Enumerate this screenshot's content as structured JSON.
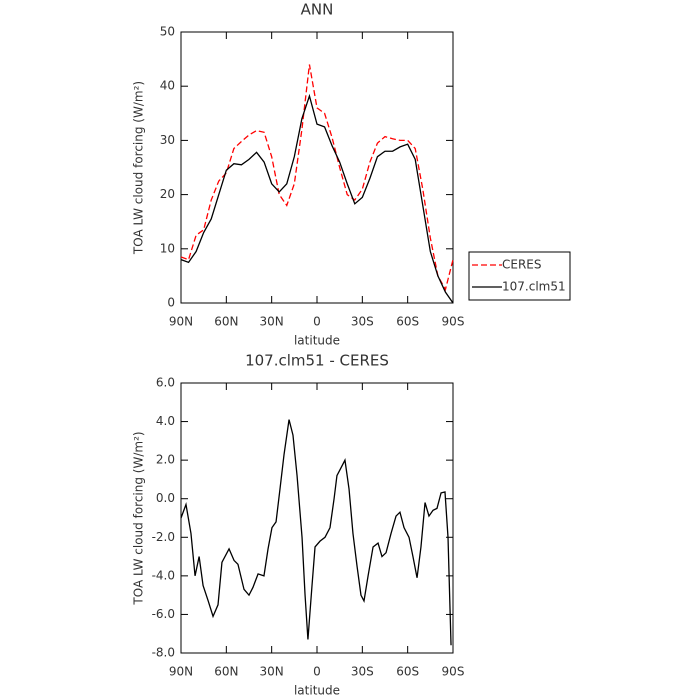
{
  "chart_data": [
    {
      "type": "line",
      "title": "ANN",
      "xlabel": "latitude",
      "ylabel": "TOA LW cloud forcing (W/m²)",
      "x": [
        90,
        85,
        80,
        75,
        70,
        65,
        60,
        55,
        50,
        45,
        40,
        35,
        30,
        25,
        20,
        15,
        10,
        5,
        0,
        -5,
        -10,
        -15,
        -20,
        -25,
        -30,
        -35,
        -40,
        -45,
        -50,
        -55,
        -60,
        -65,
        -70,
        -75,
        -80,
        -85,
        -90
      ],
      "series": [
        {
          "name": "CERES",
          "color": "#ff0000",
          "dashed": true,
          "values": [
            8.5,
            8,
            12.5,
            13.5,
            19,
            22.5,
            24,
            28.5,
            29.8,
            31,
            31.8,
            31.5,
            27,
            20,
            18,
            22,
            32,
            44,
            36,
            35,
            30.5,
            25,
            20,
            19,
            21,
            26,
            29.5,
            30.7,
            30.3,
            30,
            30,
            28.5,
            21,
            12,
            5,
            2.5,
            8
          ]
        },
        {
          "name": "107.clm51",
          "color": "#000000",
          "dashed": false,
          "values": [
            8,
            7.5,
            9.5,
            13,
            15.5,
            20,
            24.5,
            25.7,
            25.5,
            26.5,
            27.8,
            26,
            22,
            20.5,
            22,
            27,
            34,
            38.2,
            33,
            32.5,
            29,
            26,
            22,
            18.3,
            19.5,
            23,
            27,
            28,
            28,
            28.8,
            29.3,
            26.5,
            18,
            9.5,
            5,
            2,
            0
          ]
        }
      ],
      "xlim": [
        90,
        -90
      ],
      "xticks": [
        {
          "value": 90,
          "label": "90N"
        },
        {
          "value": 60,
          "label": "60N"
        },
        {
          "value": 30,
          "label": "30N"
        },
        0,
        {
          "value": -30,
          "label": "30S"
        },
        {
          "value": -60,
          "label": "60S"
        },
        {
          "value": -90,
          "label": "90S"
        }
      ],
      "ylim": [
        0,
        50
      ],
      "yticks": [
        0,
        10,
        20,
        30,
        40,
        50
      ],
      "legend": "right"
    },
    {
      "type": "line",
      "title": "107.clm51 - CERES",
      "xlabel": "latitude",
      "ylabel": "TOA LW cloud forcing (W/m²)",
      "color": "#000000",
      "x": [
        90,
        86.7,
        83.4,
        80.7,
        78,
        75.4,
        72,
        68.8,
        65.5,
        62.9,
        58.2,
        54.9,
        52.3,
        48.3,
        45,
        42.4,
        39,
        35.1,
        32.4,
        29.8,
        27.1,
        24.5,
        21.8,
        18.5,
        15.9,
        13.2,
        9.9,
        7.9,
        6,
        3.3,
        1.3,
        -2,
        -5.3,
        -8.6,
        -11.3,
        -13.2,
        -15.2,
        -18.5,
        -21.2,
        -23.8,
        -26.5,
        -29.1,
        -31.1,
        -33.8,
        -37.1,
        -40.4,
        -43,
        -45.7,
        -49,
        -52.3,
        -54.9,
        -57.6,
        -60.9,
        -63.5,
        -66.2,
        -68.8,
        -71.5,
        -74.1,
        -76.8,
        -79.4,
        -82.1,
        -84.7,
        -86.7,
        -88.7
      ],
      "values": [
        -1,
        -0.3,
        -1.8,
        -4,
        -3,
        -4.5,
        -5.3,
        -6.1,
        -5.5,
        -3.3,
        -2.6,
        -3.2,
        -3.4,
        -4.7,
        -5,
        -4.6,
        -3.9,
        -4,
        -2.6,
        -1.5,
        -1.2,
        0.5,
        2.3,
        4.1,
        3.3,
        1.2,
        -2,
        -5,
        -7.3,
        -4.5,
        -2.5,
        -2.2,
        -2,
        -1.5,
        0,
        1.2,
        1.5,
        2,
        0.5,
        -1.8,
        -3.5,
        -5,
        -5.3,
        -4,
        -2.5,
        -2.3,
        -3,
        -2.8,
        -1.8,
        -0.9,
        -0.7,
        -1.5,
        -2,
        -3,
        -4.1,
        -2.5,
        -0.2,
        -0.9,
        -0.6,
        -0.5,
        0.3,
        0.35,
        -2,
        -7.6
      ],
      "xlim": [
        90,
        -90
      ],
      "xticks": [
        {
          "value": 90,
          "label": "90N"
        },
        {
          "value": 60,
          "label": "60N"
        },
        {
          "value": 30,
          "label": "30N"
        },
        0,
        {
          "value": -30,
          "label": "30S"
        },
        {
          "value": -60,
          "label": "60S"
        },
        {
          "value": -90,
          "label": "90S"
        }
      ],
      "ylim": [
        -8,
        6
      ],
      "yticks": [
        {
          "value": -8,
          "label": "-8.0"
        },
        {
          "value": -6,
          "label": "-6.0"
        },
        {
          "value": -4,
          "label": "-4.0"
        },
        {
          "value": -2,
          "label": "-2.0"
        },
        {
          "value": 0,
          "label": "0.0"
        },
        {
          "value": 2,
          "label": "2.0"
        },
        {
          "value": 4,
          "label": "4.0"
        },
        {
          "value": 6,
          "label": "6.0"
        }
      ]
    }
  ]
}
